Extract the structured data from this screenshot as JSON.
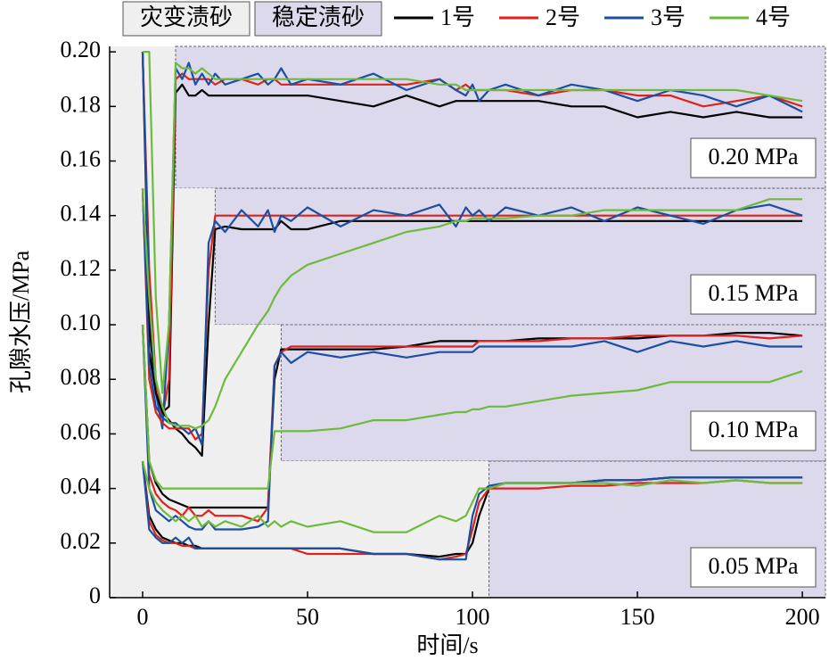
{
  "chart_data": {
    "type": "line",
    "xlabel": "时间/s",
    "ylabel": "孔隙水压/MPa",
    "xlim": [
      -10,
      207
    ],
    "xticks": [
      0,
      50,
      100,
      150,
      200
    ],
    "ylim": [
      0,
      0.202
    ],
    "yticks": [
      0,
      0.02,
      0.04,
      0.06,
      0.08,
      {
        "value": 0.1,
        "label": "0.10"
      },
      0.12,
      0.14,
      0.16,
      0.18,
      {
        "value": 0.2,
        "label": "0.20"
      }
    ],
    "regions": [
      {
        "label": "灾变渍砂",
        "color": "#efefef"
      },
      {
        "label": "稳定渍砂",
        "color": "#dcd9ec"
      }
    ],
    "series": [
      {
        "name": "1号",
        "color": "#000000"
      },
      {
        "name": "2号",
        "color": "#e0201b"
      },
      {
        "name": "3号",
        "color": "#1c4fa0"
      },
      {
        "name": "4号",
        "color": "#6dbb3c"
      }
    ],
    "x": [
      0,
      2,
      4,
      6,
      8,
      10,
      12,
      14,
      16,
      18,
      20,
      22,
      25,
      30,
      35,
      38,
      40,
      42,
      45,
      50,
      60,
      70,
      80,
      90,
      95,
      98,
      100,
      102,
      105,
      110,
      120,
      130,
      140,
      150,
      160,
      170,
      180,
      190,
      200
    ],
    "groups": [
      {
        "label": "0.20 MPa",
        "stable_from": 10,
        "values": [
          [
            0.2,
            0.1,
            0.075,
            0.068,
            0.07,
            0.185,
            0.188,
            0.184,
            0.184,
            0.186,
            0.184,
            0.184,
            0.184,
            0.184,
            0.184,
            0.184,
            0.184,
            0.184,
            0.184,
            0.184,
            0.182,
            0.18,
            0.184,
            0.18,
            0.182,
            0.182,
            0.182,
            0.182,
            0.182,
            0.182,
            0.182,
            0.18,
            0.18,
            0.176,
            0.178,
            0.176,
            0.178,
            0.176,
            0.176
          ],
          [
            0.2,
            0.12,
            0.08,
            0.066,
            0.08,
            0.19,
            0.192,
            0.19,
            0.19,
            0.19,
            0.19,
            0.188,
            0.19,
            0.19,
            0.188,
            0.19,
            0.19,
            0.188,
            0.188,
            0.188,
            0.188,
            0.188,
            0.188,
            0.19,
            0.186,
            0.188,
            0.186,
            0.186,
            0.186,
            0.186,
            0.184,
            0.186,
            0.186,
            0.184,
            0.184,
            0.18,
            0.182,
            0.184,
            0.18
          ],
          [
            0.2,
            0.11,
            0.075,
            0.062,
            0.1,
            0.194,
            0.19,
            0.196,
            0.188,
            0.192,
            0.188,
            0.192,
            0.188,
            0.19,
            0.192,
            0.188,
            0.19,
            0.194,
            0.188,
            0.19,
            0.188,
            0.192,
            0.186,
            0.19,
            0.186,
            0.184,
            0.188,
            0.182,
            0.186,
            0.188,
            0.184,
            0.188,
            0.186,
            0.182,
            0.186,
            0.184,
            0.18,
            0.184,
            0.178
          ],
          [
            0.2,
            0.2,
            0.11,
            0.075,
            0.1,
            0.196,
            0.194,
            0.194,
            0.192,
            0.194,
            0.192,
            0.19,
            0.19,
            0.19,
            0.19,
            0.19,
            0.19,
            0.19,
            0.19,
            0.19,
            0.19,
            0.19,
            0.19,
            0.188,
            0.188,
            0.186,
            0.186,
            0.186,
            0.186,
            0.186,
            0.186,
            0.186,
            0.186,
            0.186,
            0.186,
            0.186,
            0.186,
            0.184,
            0.182
          ]
        ]
      },
      {
        "label": "0.15 MPa",
        "stable_from": 22,
        "values": [
          [
            0.15,
            0.09,
            0.075,
            0.068,
            0.065,
            0.062,
            0.06,
            0.057,
            0.055,
            0.052,
            0.1,
            0.135,
            0.136,
            0.135,
            0.135,
            0.135,
            0.135,
            0.138,
            0.135,
            0.135,
            0.138,
            0.138,
            0.138,
            0.138,
            0.138,
            0.138,
            0.138,
            0.138,
            0.138,
            0.138,
            0.138,
            0.138,
            0.138,
            0.138,
            0.138,
            0.138,
            0.138,
            0.138,
            0.138
          ],
          [
            0.15,
            0.08,
            0.068,
            0.064,
            0.062,
            0.062,
            0.062,
            0.062,
            0.058,
            0.06,
            0.12,
            0.14,
            0.14,
            0.14,
            0.14,
            0.14,
            0.14,
            0.14,
            0.14,
            0.14,
            0.14,
            0.14,
            0.14,
            0.14,
            0.14,
            0.14,
            0.14,
            0.14,
            0.14,
            0.14,
            0.14,
            0.14,
            0.14,
            0.14,
            0.14,
            0.14,
            0.14,
            0.14,
            0.14
          ],
          [
            0.15,
            0.085,
            0.07,
            0.066,
            0.064,
            0.064,
            0.062,
            0.06,
            0.062,
            0.056,
            0.13,
            0.138,
            0.134,
            0.142,
            0.136,
            0.142,
            0.134,
            0.14,
            0.138,
            0.143,
            0.136,
            0.142,
            0.14,
            0.144,
            0.136,
            0.143,
            0.14,
            0.142,
            0.138,
            0.143,
            0.14,
            0.143,
            0.138,
            0.143,
            0.14,
            0.137,
            0.142,
            0.144,
            0.14
          ],
          [
            0.15,
            0.11,
            0.08,
            0.07,
            0.064,
            0.063,
            0.063,
            0.063,
            0.062,
            0.063,
            0.065,
            0.07,
            0.08,
            0.09,
            0.1,
            0.105,
            0.11,
            0.114,
            0.118,
            0.122,
            0.126,
            0.13,
            0.134,
            0.136,
            0.138,
            0.138,
            0.139,
            0.139,
            0.139,
            0.139,
            0.14,
            0.14,
            0.142,
            0.142,
            0.142,
            0.142,
            0.142,
            0.146,
            0.146
          ]
        ]
      },
      {
        "label": "0.10 MPa",
        "stable_from": 42,
        "values": [
          [
            0.1,
            0.05,
            0.042,
            0.038,
            0.036,
            0.035,
            0.034,
            0.033,
            0.033,
            0.033,
            0.033,
            0.033,
            0.033,
            0.033,
            0.033,
            0.033,
            0.08,
            0.091,
            0.091,
            0.091,
            0.091,
            0.091,
            0.092,
            0.094,
            0.094,
            0.094,
            0.094,
            0.094,
            0.094,
            0.094,
            0.095,
            0.095,
            0.095,
            0.095,
            0.096,
            0.096,
            0.097,
            0.097,
            0.096
          ],
          [
            0.1,
            0.045,
            0.038,
            0.035,
            0.033,
            0.032,
            0.03,
            0.033,
            0.03,
            0.03,
            0.032,
            0.03,
            0.03,
            0.03,
            0.028,
            0.033,
            0.085,
            0.09,
            0.092,
            0.092,
            0.092,
            0.092,
            0.092,
            0.092,
            0.092,
            0.092,
            0.092,
            0.094,
            0.094,
            0.094,
            0.094,
            0.095,
            0.095,
            0.096,
            0.096,
            0.096,
            0.096,
            0.095,
            0.096
          ],
          [
            0.1,
            0.04,
            0.032,
            0.03,
            0.028,
            0.03,
            0.028,
            0.026,
            0.025,
            0.025,
            0.028,
            0.025,
            0.025,
            0.025,
            0.026,
            0.028,
            0.085,
            0.09,
            0.086,
            0.09,
            0.088,
            0.09,
            0.088,
            0.09,
            0.09,
            0.09,
            0.09,
            0.092,
            0.092,
            0.092,
            0.092,
            0.092,
            0.094,
            0.09,
            0.094,
            0.092,
            0.094,
            0.092,
            0.092
          ],
          [
            0.1,
            0.05,
            0.043,
            0.04,
            0.04,
            0.04,
            0.04,
            0.04,
            0.04,
            0.04,
            0.04,
            0.04,
            0.04,
            0.04,
            0.04,
            0.04,
            0.061,
            0.061,
            0.061,
            0.061,
            0.062,
            0.065,
            0.065,
            0.067,
            0.068,
            0.068,
            0.069,
            0.069,
            0.07,
            0.07,
            0.072,
            0.074,
            0.075,
            0.076,
            0.079,
            0.079,
            0.079,
            0.079,
            0.083
          ]
        ]
      },
      {
        "label": "0.05 MPa",
        "stable_from": 105,
        "values": [
          [
            0.05,
            0.03,
            0.025,
            0.022,
            0.021,
            0.02,
            0.02,
            0.019,
            0.019,
            0.018,
            0.018,
            0.018,
            0.018,
            0.018,
            0.018,
            0.018,
            0.018,
            0.018,
            0.018,
            0.018,
            0.018,
            0.016,
            0.016,
            0.015,
            0.016,
            0.016,
            0.02,
            0.03,
            0.04,
            0.042,
            0.042,
            0.042,
            0.043,
            0.043,
            0.044,
            0.044,
            0.044,
            0.044,
            0.044
          ],
          [
            0.05,
            0.028,
            0.023,
            0.021,
            0.02,
            0.02,
            0.019,
            0.019,
            0.018,
            0.018,
            0.018,
            0.018,
            0.018,
            0.018,
            0.018,
            0.018,
            0.018,
            0.018,
            0.018,
            0.016,
            0.016,
            0.016,
            0.016,
            0.014,
            0.015,
            0.016,
            0.025,
            0.035,
            0.04,
            0.04,
            0.04,
            0.041,
            0.041,
            0.042,
            0.042,
            0.042,
            0.043,
            0.042,
            0.042
          ],
          [
            0.05,
            0.025,
            0.022,
            0.02,
            0.02,
            0.022,
            0.02,
            0.022,
            0.018,
            0.018,
            0.018,
            0.018,
            0.018,
            0.018,
            0.018,
            0.018,
            0.018,
            0.018,
            0.018,
            0.018,
            0.018,
            0.016,
            0.016,
            0.014,
            0.014,
            0.014,
            0.03,
            0.038,
            0.041,
            0.042,
            0.042,
            0.042,
            0.043,
            0.043,
            0.044,
            0.044,
            0.044,
            0.044,
            0.044
          ],
          [
            0.05,
            0.04,
            0.035,
            0.032,
            0.03,
            0.028,
            0.03,
            0.028,
            0.03,
            0.026,
            0.028,
            0.026,
            0.028,
            0.026,
            0.03,
            0.026,
            0.028,
            0.026,
            0.028,
            0.026,
            0.028,
            0.024,
            0.024,
            0.03,
            0.028,
            0.03,
            0.035,
            0.04,
            0.04,
            0.042,
            0.042,
            0.042,
            0.042,
            0.041,
            0.043,
            0.042,
            0.043,
            0.042,
            0.042
          ]
        ]
      }
    ]
  }
}
